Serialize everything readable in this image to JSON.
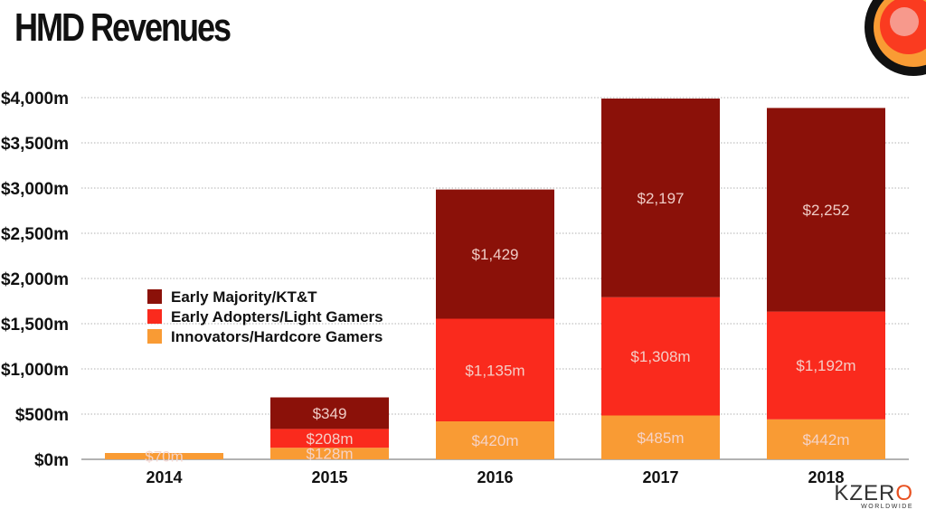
{
  "title": "HMD Revenues",
  "brand": {
    "name_main": "KZER",
    "name_last": "O",
    "subtitle": "WORLDWIDE"
  },
  "colors": {
    "early_majority": "#8b1109",
    "early_adopters": "#fa2a1d",
    "innovators": "#f99b34",
    "grid": "#999999",
    "label_text": "#f4d6d0"
  },
  "chart_data": {
    "type": "bar",
    "stacked": true,
    "title": "HMD Revenues",
    "categories": [
      "2014",
      "2015",
      "2016",
      "2017",
      "2018"
    ],
    "ylim": [
      0,
      4000
    ],
    "y_ticks": [
      0,
      500,
      1000,
      1500,
      2000,
      2500,
      3000,
      3500,
      4000
    ],
    "y_tick_labels": [
      "$0m",
      "$500m",
      "$1,000m",
      "$1,500m",
      "$2,000m",
      "$2,500m",
      "$3,000m",
      "$3,500m",
      "$4,000m"
    ],
    "grid": true,
    "legend_position": "left-middle",
    "series": [
      {
        "name": "Innovators/Hardcore Gamers",
        "color": "#f99b34",
        "values": [
          70,
          128,
          420,
          485,
          442
        ],
        "labels": [
          "$70m",
          "$128m",
          "$420m",
          "$485m",
          "$442m"
        ]
      },
      {
        "name": "Early Adopters/Light Gamers",
        "color": "#fa2a1d",
        "values": [
          0,
          208,
          1135,
          1308,
          1192
        ],
        "labels": [
          "",
          "$208m",
          "$1,135m",
          "$1,308m",
          "$1,192m"
        ]
      },
      {
        "name": "Early Majority/KT&T",
        "color": "#8b1109",
        "values": [
          0,
          349,
          1429,
          2197,
          2252
        ],
        "labels": [
          "",
          "$349",
          "$1,429",
          "$2,197",
          "$2,252"
        ]
      }
    ],
    "legend_order": [
      "Early Majority/KT&T",
      "Early Adopters/Light Gamers",
      "Innovators/Hardcore Gamers"
    ]
  }
}
